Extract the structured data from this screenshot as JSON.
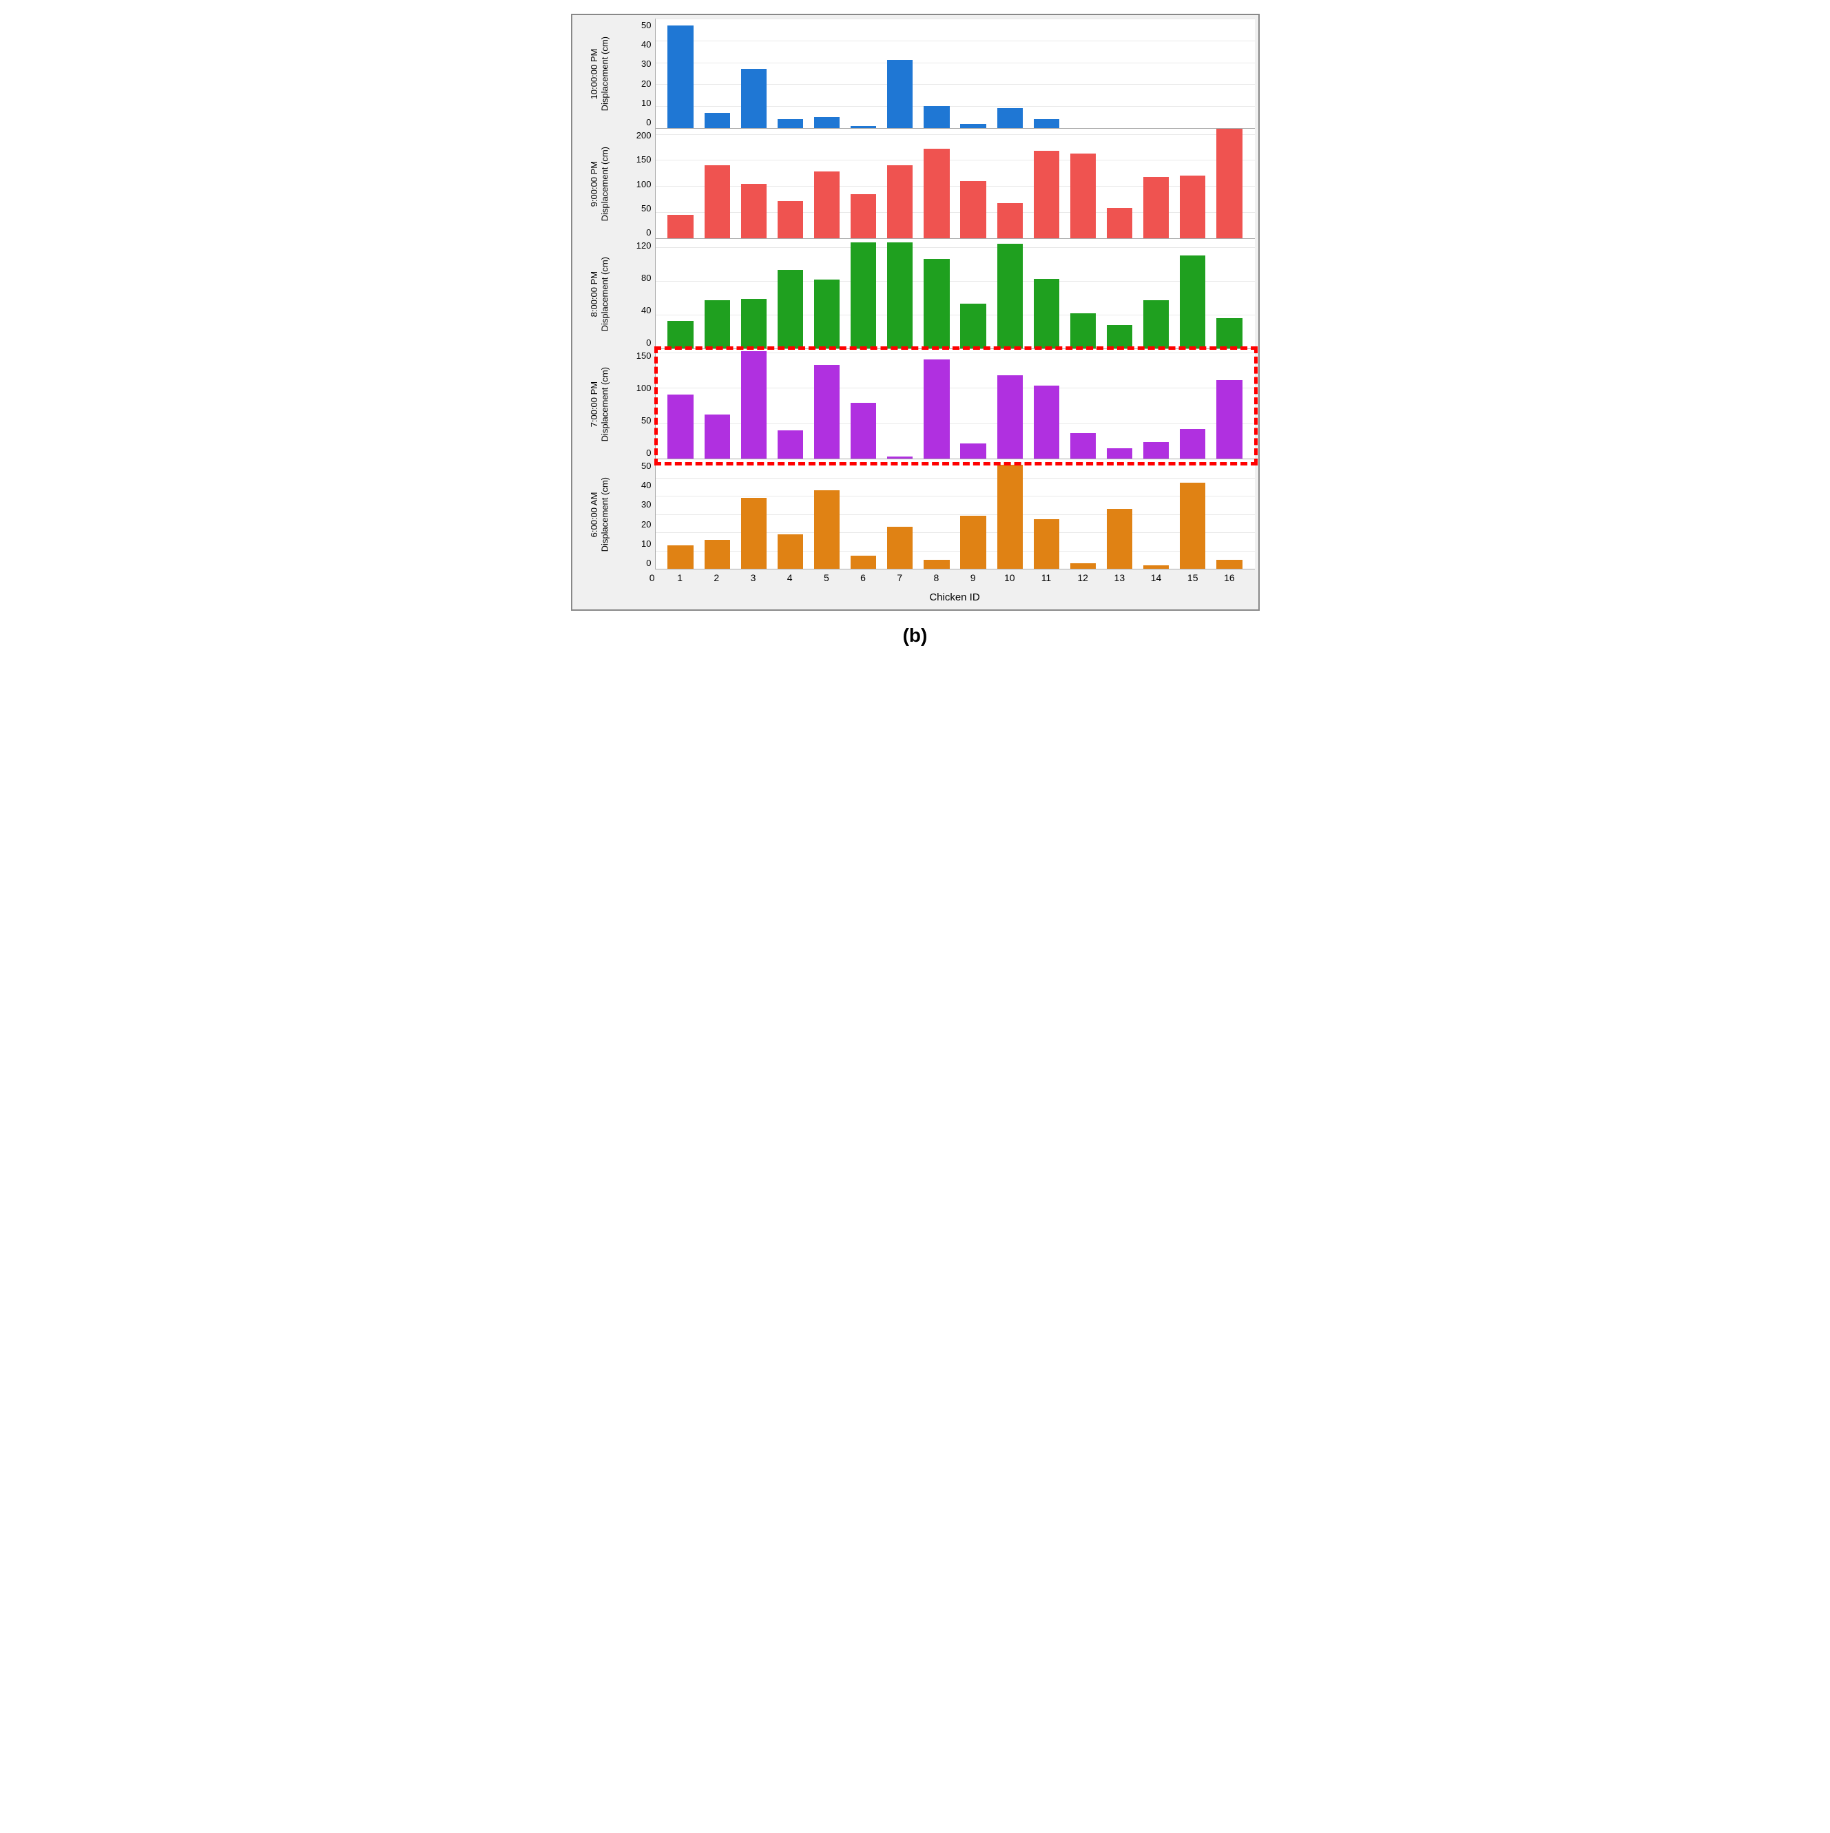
{
  "caption": "(b)",
  "xlabel": "Chicken ID",
  "categories": [
    1,
    2,
    3,
    4,
    5,
    6,
    7,
    8,
    9,
    10,
    11,
    12,
    13,
    14,
    15,
    16
  ],
  "background_color": "#f0f0f0",
  "plot_background": "#ffffff",
  "grid_color": "#e8e8e8",
  "border_color": "#888888",
  "highlight_border_color": "#ff0000",
  "highlight_panel_index": 3,
  "label_fontsize": 13,
  "tick_fontsize": 13,
  "caption_fontsize": 28,
  "panels": [
    {
      "ylabel_line1": "Displacement (cm)",
      "ylabel_line2": "10:00:00 PM",
      "ylim": [
        0,
        50
      ],
      "yticks": [
        0,
        10,
        20,
        30,
        40,
        50
      ],
      "bar_color": "#1f77d4",
      "values": [
        47,
        7,
        27,
        4,
        5,
        1,
        31,
        10,
        2,
        9,
        4,
        0,
        0,
        0,
        0,
        0
      ]
    },
    {
      "ylabel_line1": "Displacement (cm)",
      "ylabel_line2": "9:00:00 PM",
      "ylim": [
        0,
        210
      ],
      "yticks": [
        0,
        50,
        100,
        150,
        200
      ],
      "bar_color": "#ef5350",
      "values": [
        45,
        140,
        105,
        72,
        128,
        85,
        140,
        172,
        110,
        67,
        168,
        163,
        58,
        118,
        120,
        210
      ]
    },
    {
      "ylabel_line1": "Displacement (cm)",
      "ylabel_line2": "8:00:00 PM",
      "ylim": [
        0,
        130
      ],
      "yticks": [
        0,
        40,
        80,
        120
      ],
      "bar_color": "#1fa01f",
      "values": [
        33,
        57,
        59,
        93,
        82,
        126,
        126,
        106,
        53,
        124,
        83,
        42,
        28,
        57,
        110,
        36
      ]
    },
    {
      "ylabel_line1": "Displacement (cm)",
      "ylabel_line2": "7:00:00 PM",
      "ylim": [
        0,
        155
      ],
      "yticks": [
        0,
        50,
        100,
        150
      ],
      "bar_color": "#b030e0",
      "values": [
        91,
        62,
        152,
        40,
        133,
        79,
        3,
        140,
        21,
        118,
        103,
        36,
        15,
        23,
        42,
        111
      ]
    },
    {
      "ylabel_line1": "Displacement (cm)",
      "ylabel_line2": "6:00:00 AM",
      "ylim": [
        0,
        60
      ],
      "yticks": [
        0,
        10,
        20,
        30,
        40,
        50
      ],
      "bar_color": "#e08214",
      "values": [
        13,
        16,
        39,
        19,
        43,
        7,
        23,
        5,
        29,
        57,
        27,
        3,
        33,
        2,
        47,
        5
      ]
    }
  ]
}
